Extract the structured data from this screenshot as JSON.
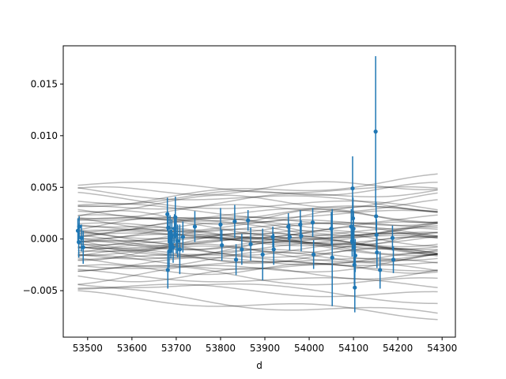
{
  "chart_data": {
    "type": "scatter",
    "title": "",
    "xlabel": "d",
    "ylabel": "",
    "xlim": [
      53445,
      54330
    ],
    "ylim": [
      -0.0095,
      0.0187
    ],
    "xticks": [
      53500,
      53600,
      53700,
      53800,
      53900,
      54000,
      54100,
      54200,
      54300
    ],
    "xtick_labels": [
      "53500",
      "53600",
      "53700",
      "53800",
      "53900",
      "54000",
      "54100",
      "54200",
      "54300"
    ],
    "yticks": [
      -0.005,
      0.0,
      0.005,
      0.01,
      0.015
    ],
    "ytick_labels": [
      "−0.005",
      "0.000",
      "0.005",
      "0.010",
      "0.015"
    ],
    "grid": false,
    "colors": {
      "points": "#1f77b4",
      "curves": "#000000"
    },
    "series": [
      {
        "kind": "errorbar",
        "points": [
          {
            "x": 53478,
            "y": 0.0008,
            "err": 0.0012
          },
          {
            "x": 53480,
            "y": -0.0003,
            "err": 0.0015
          },
          {
            "x": 53481,
            "y": 0.0012,
            "err": 0.001
          },
          {
            "x": 53486,
            "y": 0.0001,
            "err": 0.0013
          },
          {
            "x": 53490,
            "y": -0.0008,
            "err": 0.0016
          },
          {
            "x": 53680,
            "y": 0.0024,
            "err": 0.0016
          },
          {
            "x": 53681,
            "y": -0.003,
            "err": 0.0018
          },
          {
            "x": 53682,
            "y": 0.0011,
            "err": 0.0015
          },
          {
            "x": 53684,
            "y": -0.0012,
            "err": 0.0016
          },
          {
            "x": 53686,
            "y": 0.0006,
            "err": 0.0017
          },
          {
            "x": 53688,
            "y": -0.0005,
            "err": 0.0014
          },
          {
            "x": 53690,
            "y": 0.0003,
            "err": 0.0016
          },
          {
            "x": 53693,
            "y": -0.0008,
            "err": 0.0015
          },
          {
            "x": 53696,
            "y": 0.001,
            "err": 0.0014
          },
          {
            "x": 53698,
            "y": 0.0021,
            "err": 0.002
          },
          {
            "x": 53700,
            "y": 0.0004,
            "err": 0.0018
          },
          {
            "x": 53703,
            "y": -0.0002,
            "err": 0.0016
          },
          {
            "x": 53708,
            "y": -0.001,
            "err": 0.0024
          },
          {
            "x": 53715,
            "y": 0.0002,
            "err": 0.0015
          },
          {
            "x": 53742,
            "y": 0.0012,
            "err": 0.0015
          },
          {
            "x": 53800,
            "y": 0.0014,
            "err": 0.0016
          },
          {
            "x": 53803,
            "y": -0.0006,
            "err": 0.0015
          },
          {
            "x": 53832,
            "y": 0.0017,
            "err": 0.0016
          },
          {
            "x": 53835,
            "y": -0.002,
            "err": 0.0015
          },
          {
            "x": 53848,
            "y": -0.001,
            "err": 0.0015
          },
          {
            "x": 53862,
            "y": 0.0018,
            "err": 0.001
          },
          {
            "x": 53868,
            "y": -0.0005,
            "err": 0.0016
          },
          {
            "x": 53895,
            "y": -0.0015,
            "err": 0.0025
          },
          {
            "x": 53918,
            "y": 0.0002,
            "err": 0.001
          },
          {
            "x": 53920,
            "y": -0.001,
            "err": 0.0015
          },
          {
            "x": 53953,
            "y": 0.0012,
            "err": 0.0013
          },
          {
            "x": 53956,
            "y": 0.0002,
            "err": 0.0013
          },
          {
            "x": 53980,
            "y": 0.0014,
            "err": 0.0014
          },
          {
            "x": 53982,
            "y": 0.0003,
            "err": 0.0015
          },
          {
            "x": 54008,
            "y": 0.0016,
            "err": 0.0014
          },
          {
            "x": 54010,
            "y": -0.0015,
            "err": 0.0014
          },
          {
            "x": 54050,
            "y": 0.001,
            "err": 0.0016
          },
          {
            "x": 54052,
            "y": -0.0018,
            "err": 0.0047
          },
          {
            "x": 54095,
            "y": 0.0012,
            "err": 0.0017
          },
          {
            "x": 54097,
            "y": -0.0002,
            "err": 0.0015
          },
          {
            "x": 54098,
            "y": 0.0049,
            "err": 0.0031
          },
          {
            "x": 54099,
            "y": 0.002,
            "err": 0.002
          },
          {
            "x": 54100,
            "y": 0.001,
            "err": 0.0017
          },
          {
            "x": 54101,
            "y": -0.0008,
            "err": 0.0018
          },
          {
            "x": 54102,
            "y": -0.0025,
            "err": 0.002
          },
          {
            "x": 54103,
            "y": -0.0047,
            "err": 0.0024
          },
          {
            "x": 54104,
            "y": -0.0016,
            "err": 0.0016
          },
          {
            "x": 54150,
            "y": 0.0104,
            "err": 0.0073
          },
          {
            "x": 54151,
            "y": 0.0022,
            "err": 0.0014
          },
          {
            "x": 54152,
            "y": 0.0004,
            "err": 0.0015
          },
          {
            "x": 54153,
            "y": -0.0013,
            "err": 0.0015
          },
          {
            "x": 54160,
            "y": -0.003,
            "err": 0.0018
          },
          {
            "x": 54188,
            "y": 0.0001,
            "err": 0.0012
          },
          {
            "x": 54190,
            "y": -0.002,
            "err": 0.0013
          }
        ]
      },
      {
        "kind": "lines",
        "x_range": [
          53478,
          54290
        ],
        "curves": [
          {
            "c": 0.0052,
            "s": -0.0006,
            "a": 0.0004,
            "p": 600,
            "f": 0.0
          },
          {
            "c": 0.0045,
            "s": 0.0008,
            "a": 0.0005,
            "p": 500,
            "f": 1.0
          },
          {
            "c": 0.004,
            "s": -0.0012,
            "a": 0.0006,
            "p": 700,
            "f": 2.1
          },
          {
            "c": 0.0036,
            "s": 0.0015,
            "a": 0.0004,
            "p": 450,
            "f": 3.0
          },
          {
            "c": 0.0033,
            "s": 0.0006,
            "a": 0.0007,
            "p": 550,
            "f": 4.2
          },
          {
            "c": 0.003,
            "s": -0.0008,
            "a": 0.0005,
            "p": 650,
            "f": 0.6
          },
          {
            "c": 0.0028,
            "s": 0.002,
            "a": 0.0004,
            "p": 480,
            "f": 1.8
          },
          {
            "c": 0.0026,
            "s": -0.0004,
            "a": 0.0006,
            "p": 620,
            "f": 2.7
          },
          {
            "c": 0.0024,
            "s": 0.001,
            "a": 0.0005,
            "p": 530,
            "f": 3.9
          },
          {
            "c": 0.0022,
            "s": -0.0015,
            "a": 0.0004,
            "p": 700,
            "f": 5.0
          },
          {
            "c": 0.002,
            "s": 0.0003,
            "a": 0.0007,
            "p": 460,
            "f": 0.3
          },
          {
            "c": 0.0018,
            "s": 0.0012,
            "a": 0.0005,
            "p": 580,
            "f": 1.4
          },
          {
            "c": 0.0016,
            "s": -0.001,
            "a": 0.0006,
            "p": 640,
            "f": 2.4
          },
          {
            "c": 0.0015,
            "s": 0.0005,
            "a": 0.0004,
            "p": 510,
            "f": 3.5
          },
          {
            "c": 0.0013,
            "s": -0.0002,
            "a": 0.0008,
            "p": 600,
            "f": 4.6
          },
          {
            "c": 0.0012,
            "s": 0.0018,
            "a": 0.0005,
            "p": 470,
            "f": 5.6
          },
          {
            "c": 0.001,
            "s": -0.0006,
            "a": 0.0006,
            "p": 690,
            "f": 0.9
          },
          {
            "c": 0.0009,
            "s": 0.0009,
            "a": 0.0004,
            "p": 520,
            "f": 2.0
          },
          {
            "c": 0.0008,
            "s": -0.0014,
            "a": 0.0005,
            "p": 610,
            "f": 3.2
          },
          {
            "c": 0.0007,
            "s": 0.0004,
            "a": 0.0007,
            "p": 560,
            "f": 4.3
          },
          {
            "c": 0.0006,
            "s": 0.0001,
            "a": 0.0005,
            "p": 450,
            "f": 5.3
          },
          {
            "c": 0.0005,
            "s": -0.0009,
            "a": 0.0006,
            "p": 660,
            "f": 0.1
          },
          {
            "c": 0.0004,
            "s": 0.0011,
            "a": 0.0004,
            "p": 540,
            "f": 1.2
          },
          {
            "c": 0.0003,
            "s": -0.0003,
            "a": 0.0007,
            "p": 590,
            "f": 2.3
          },
          {
            "c": 0.0002,
            "s": 0.0006,
            "a": 0.0005,
            "p": 480,
            "f": 3.4
          },
          {
            "c": 0.0001,
            "s": -0.0012,
            "a": 0.0006,
            "p": 700,
            "f": 4.5
          },
          {
            "c": 0.0,
            "s": 0.0002,
            "a": 0.0004,
            "p": 510,
            "f": 5.5
          },
          {
            "c": -0.0001,
            "s": 0.0014,
            "a": 0.0005,
            "p": 620,
            "f": 0.7
          },
          {
            "c": -0.0002,
            "s": -0.0007,
            "a": 0.0006,
            "p": 560,
            "f": 1.9
          },
          {
            "c": -0.0003,
            "s": 0.0003,
            "a": 0.0007,
            "p": 470,
            "f": 2.9
          },
          {
            "c": -0.0004,
            "s": -0.0001,
            "a": 0.0005,
            "p": 640,
            "f": 4.0
          },
          {
            "c": -0.0005,
            "s": 0.0008,
            "a": 0.0004,
            "p": 530,
            "f": 5.1
          },
          {
            "c": -0.0006,
            "s": -0.0011,
            "a": 0.0006,
            "p": 600,
            "f": 0.4
          },
          {
            "c": -0.0007,
            "s": 0.0005,
            "a": 0.0005,
            "p": 490,
            "f": 1.5
          },
          {
            "c": -0.0008,
            "s": -0.0004,
            "a": 0.0007,
            "p": 680,
            "f": 2.6
          },
          {
            "c": -0.0009,
            "s": 0.001,
            "a": 0.0004,
            "p": 550,
            "f": 3.7
          },
          {
            "c": -0.001,
            "s": -0.0008,
            "a": 0.0006,
            "p": 610,
            "f": 4.8
          },
          {
            "c": -0.0011,
            "s": 0.0001,
            "a": 0.0005,
            "p": 460,
            "f": 5.8
          },
          {
            "c": -0.0012,
            "s": -0.0013,
            "a": 0.0004,
            "p": 650,
            "f": 1.1
          },
          {
            "c": -0.0013,
            "s": 0.0006,
            "a": 0.0007,
            "p": 520,
            "f": 2.2
          },
          {
            "c": -0.0014,
            "s": -0.0002,
            "a": 0.0005,
            "p": 590,
            "f": 3.3
          },
          {
            "c": -0.0015,
            "s": 0.0012,
            "a": 0.0006,
            "p": 480,
            "f": 4.4
          },
          {
            "c": -0.0017,
            "s": -0.0006,
            "a": 0.0004,
            "p": 700,
            "f": 5.4
          },
          {
            "c": -0.0018,
            "s": 0.0003,
            "a": 0.0007,
            "p": 560,
            "f": 0.2
          },
          {
            "c": -0.002,
            "s": -0.001,
            "a": 0.0005,
            "p": 620,
            "f": 1.3
          },
          {
            "c": -0.0022,
            "s": 0.0007,
            "a": 0.0006,
            "p": 500,
            "f": 2.5
          },
          {
            "c": -0.0024,
            "s": -0.0003,
            "a": 0.0004,
            "p": 660,
            "f": 3.6
          },
          {
            "c": -0.0026,
            "s": 0.0009,
            "a": 0.0005,
            "p": 540,
            "f": 4.7
          },
          {
            "c": -0.0028,
            "s": -0.0016,
            "a": 0.0006,
            "p": 600,
            "f": 5.7
          },
          {
            "c": -0.003,
            "s": 0.0002,
            "a": 0.0005,
            "p": 470,
            "f": 0.8
          },
          {
            "c": -0.0033,
            "s": -0.0012,
            "a": 0.0004,
            "p": 640,
            "f": 2.0
          },
          {
            "c": -0.0036,
            "s": 0.0004,
            "a": 0.0006,
            "p": 520,
            "f": 3.1
          },
          {
            "c": -0.004,
            "s": -0.0018,
            "a": 0.0005,
            "p": 690,
            "f": 4.1
          },
          {
            "c": -0.0045,
            "s": -0.001,
            "a": 0.0004,
            "p": 580,
            "f": 5.2
          },
          {
            "c": -0.005,
            "s": -0.0025,
            "a": 0.0005,
            "p": 620,
            "f": 0.5
          },
          {
            "c": -0.0054,
            "s": -0.002,
            "a": 0.0004,
            "p": 540,
            "f": 1.6
          },
          {
            "c": 0.0048,
            "s": -0.0018,
            "a": 0.0005,
            "p": 660,
            "f": 2.8
          },
          {
            "c": 0.0034,
            "s": 0.0025,
            "a": 0.0004,
            "p": 500,
            "f": 3.8
          },
          {
            "c": -0.0038,
            "s": 0.0018,
            "a": 0.0006,
            "p": 580,
            "f": 4.9
          },
          {
            "c": 0.0019,
            "s": -0.0022,
            "a": 0.0005,
            "p": 630,
            "f": 0.0
          }
        ]
      }
    ]
  }
}
